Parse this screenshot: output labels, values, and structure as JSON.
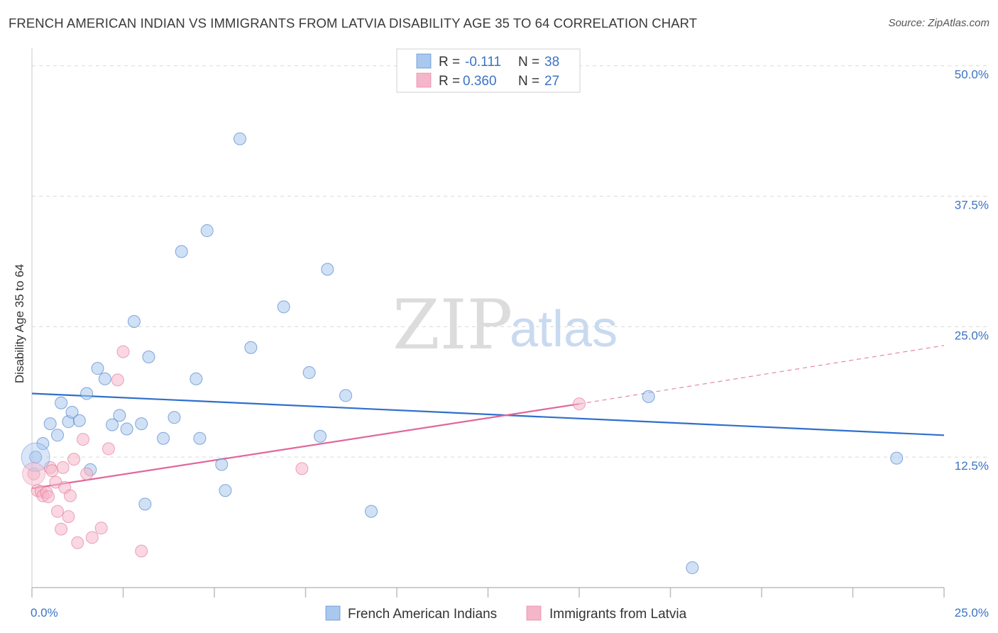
{
  "header": {
    "title": "FRENCH AMERICAN INDIAN VS IMMIGRANTS FROM LATVIA DISABILITY AGE 35 TO 64 CORRELATION CHART",
    "source": "Source: ZipAtlas.com"
  },
  "watermark": {
    "zip": "ZIP",
    "atlas": "atlas"
  },
  "legend": {
    "rows": [
      {
        "r_label": "R = ",
        "r_value": "-0.111",
        "n_label": "N = ",
        "n_value": "38",
        "color": "#a9c8ef"
      },
      {
        "r_label": "R = ",
        "r_value": "0.360",
        "n_label": "N = ",
        "n_value": "27",
        "color": "#f5b6c9"
      }
    ]
  },
  "chart_data": {
    "type": "scatter",
    "title": "FRENCH AMERICAN INDIAN VS IMMIGRANTS FROM LATVIA DISABILITY AGE 35 TO 64 CORRELATION CHART",
    "xlabel": "",
    "ylabel": "Disability Age 35 to 64",
    "xlim": [
      0,
      25
    ],
    "ylim": [
      0,
      51
    ],
    "x_tick_labels": [
      "0.0%",
      "25.0%"
    ],
    "y_ticks": [
      12.5,
      25.0,
      37.5,
      50.0
    ],
    "y_tick_labels": [
      "12.5%",
      "25.0%",
      "37.5%",
      "50.0%"
    ],
    "grid": true,
    "legend_position": "top-center",
    "series": [
      {
        "name": "French American Indians",
        "color": "#a9c8ef",
        "stroke": "#3b73c4",
        "r": -0.111,
        "n": 38,
        "trend": {
          "x0": 0,
          "y0": 18.6,
          "x1": 25,
          "y1": 14.6
        },
        "points": [
          [
            0.1,
            12.5
          ],
          [
            0.3,
            13.8
          ],
          [
            0.5,
            15.7
          ],
          [
            0.7,
            14.6
          ],
          [
            0.8,
            17.7
          ],
          [
            1.0,
            15.9
          ],
          [
            1.1,
            16.8
          ],
          [
            1.3,
            16.0
          ],
          [
            1.5,
            18.6
          ],
          [
            1.6,
            11.3
          ],
          [
            1.8,
            21.0
          ],
          [
            2.0,
            20.0
          ],
          [
            2.2,
            15.6
          ],
          [
            2.4,
            16.5
          ],
          [
            2.6,
            15.2
          ],
          [
            2.8,
            25.5
          ],
          [
            3.0,
            15.7
          ],
          [
            3.1,
            8.0
          ],
          [
            3.2,
            22.1
          ],
          [
            3.6,
            14.3
          ],
          [
            3.9,
            16.3
          ],
          [
            4.1,
            32.2
          ],
          [
            4.5,
            20.0
          ],
          [
            4.6,
            14.3
          ],
          [
            4.8,
            34.2
          ],
          [
            5.2,
            11.8
          ],
          [
            5.3,
            9.3
          ],
          [
            5.7,
            43.0
          ],
          [
            6.0,
            23.0
          ],
          [
            6.9,
            26.9
          ],
          [
            7.6,
            20.6
          ],
          [
            7.9,
            14.5
          ],
          [
            8.1,
            30.5
          ],
          [
            8.6,
            18.4
          ],
          [
            9.3,
            7.3
          ],
          [
            16.9,
            18.3
          ],
          [
            18.1,
            1.9
          ],
          [
            23.7,
            12.4
          ]
        ]
      },
      {
        "name": "Immigrants from Latvia",
        "color": "#f5b6c9",
        "stroke": "#e07098",
        "r": 0.36,
        "n": 27,
        "trend": {
          "x0": 0,
          "y0": 9.5,
          "x1": 15.0,
          "y1": 17.6
        },
        "trend_dashed": {
          "x0": 15.0,
          "y0": 17.6,
          "x1": 25,
          "y1": 23.2
        },
        "points": [
          [
            0.05,
            10.9
          ],
          [
            0.15,
            9.3
          ],
          [
            0.25,
            9.2
          ],
          [
            0.3,
            8.8
          ],
          [
            0.4,
            9.1
          ],
          [
            0.45,
            8.7
          ],
          [
            0.5,
            11.5
          ],
          [
            0.55,
            11.2
          ],
          [
            0.65,
            10.1
          ],
          [
            0.7,
            7.3
          ],
          [
            0.8,
            5.6
          ],
          [
            0.85,
            11.5
          ],
          [
            0.9,
            9.6
          ],
          [
            1.0,
            6.8
          ],
          [
            1.05,
            8.8
          ],
          [
            1.15,
            12.3
          ],
          [
            1.25,
            4.3
          ],
          [
            1.4,
            14.2
          ],
          [
            1.5,
            10.9
          ],
          [
            1.65,
            4.8
          ],
          [
            1.9,
            5.7
          ],
          [
            2.1,
            13.3
          ],
          [
            2.35,
            19.9
          ],
          [
            2.5,
            22.6
          ],
          [
            3.0,
            3.5
          ],
          [
            7.4,
            11.4
          ],
          [
            15.0,
            17.6
          ]
        ]
      }
    ]
  }
}
